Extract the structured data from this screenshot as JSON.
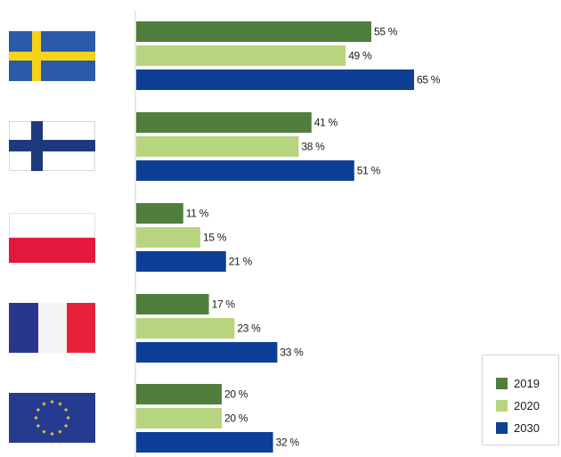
{
  "chart_data": {
    "type": "bar",
    "orientation": "horizontal",
    "categories": [
      "Sweden",
      "Finland",
      "Poland",
      "France",
      "EU"
    ],
    "category_icons": [
      "sweden-flag-icon",
      "finland-flag-icon",
      "poland-flag-icon",
      "france-flag-icon",
      "eu-flag-icon"
    ],
    "series": [
      {
        "name": "2019",
        "color": "#507e3d",
        "values": [
          55,
          41,
          11,
          17,
          20
        ]
      },
      {
        "name": "2020",
        "color": "#b7d57e",
        "values": [
          49,
          38,
          15,
          23,
          20
        ]
      },
      {
        "name": "2030",
        "color": "#0e3f96",
        "values": [
          65,
          51,
          21,
          33,
          32
        ]
      }
    ],
    "value_suffix": " %",
    "xlim": [
      0,
      100
    ],
    "legend_position": "bottom-right",
    "grid": false
  }
}
